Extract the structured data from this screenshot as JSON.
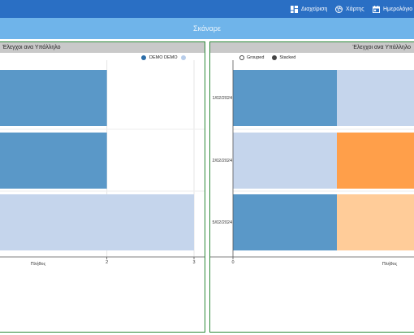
{
  "topnav": {
    "admin_label": "Διαχείριση",
    "map_label": "Χάρτης",
    "calendar_label": "Ημερολόγιο",
    "background": "#2a6fc4"
  },
  "subbar": {
    "title": "Σκάναρε",
    "background": "#6fb4ea"
  },
  "panels": {
    "left": {
      "title": "Έλεγχοι ανα Υπάλληλο",
      "legend": [
        {
          "name": "DEMO DEMO",
          "color": "#2e6ea8"
        },
        {
          "name": "",
          "color": "#b8cdea"
        }
      ]
    },
    "right": {
      "title": "Έλεγχοι ανα Υπάλληλο",
      "legend_grouped": "Grouped",
      "legend_stacked": "Stacked"
    }
  },
  "colors": {
    "blue": "#5a98c8",
    "light_blue": "#c5d5ec",
    "orange": "#ff9f4a",
    "peach": "#ffcc99",
    "border_green": "#2e8b3a",
    "header_gray": "#c9c9c9"
  },
  "chart_data": [
    {
      "type": "bar",
      "orientation": "horizontal",
      "xlabel": "Πλήθος",
      "x_ticks": [
        "2",
        "3"
      ],
      "xlim": [
        0,
        3
      ],
      "categories": [
        "",
        "",
        ""
      ],
      "series": [
        {
          "name": "DEMO DEMO",
          "values": [
            2,
            2,
            0
          ],
          "color": "#5a98c8"
        },
        {
          "values": [
            0,
            0,
            3
          ],
          "color": "#c5d5ec"
        }
      ]
    },
    {
      "type": "bar",
      "orientation": "horizontal",
      "stacked": true,
      "xlabel": "Πλήθος",
      "x_ticks": [
        "0"
      ],
      "categories": [
        "1/02/2024",
        "2/02/2024",
        "5/02/2024"
      ],
      "segments": [
        {
          "values": [
            1,
            0,
            1
          ],
          "color": "#5a98c8"
        },
        {
          "values": [
            0,
            1,
            0
          ],
          "color": "#c5d5ec"
        },
        {
          "values": [
            1,
            0,
            0
          ],
          "color": "#c5d5ec"
        },
        {
          "values": [
            0,
            1,
            0
          ],
          "color": "#ff9f4a"
        },
        {
          "values": [
            0,
            0,
            1
          ],
          "color": "#ffcc99"
        }
      ]
    }
  ]
}
